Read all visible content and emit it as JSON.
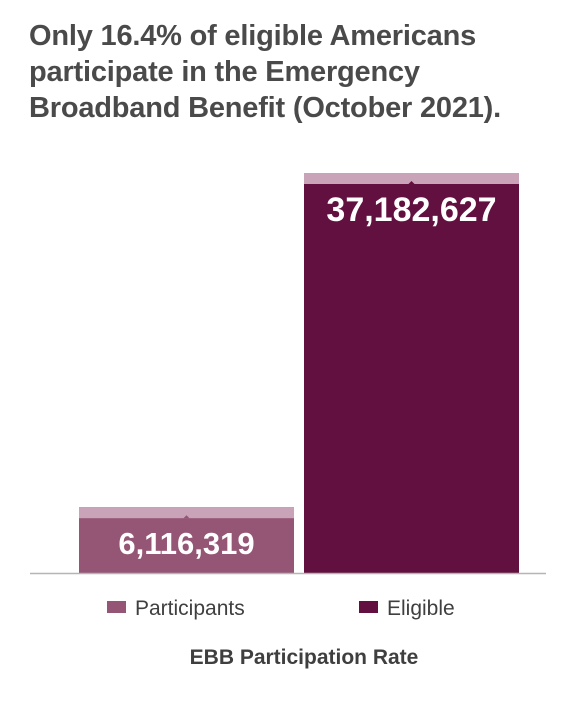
{
  "title_lines": [
    "Only 16.4% of eligible Americans",
    "participate in the Emergency",
    "Broadband Benefit (October 2021)."
  ],
  "colors": {
    "title": "#4a4a4a",
    "participants": "#955575",
    "eligible": "#62103f",
    "bar_cap": "#c9a3b7",
    "axis": "#b5b5b5",
    "label": "#ffffff",
    "legend_text": "#3f3f3f"
  },
  "chart_data": {
    "type": "bar",
    "categories": [
      "Participants",
      "Eligible"
    ],
    "values": [
      6116319,
      37182627
    ],
    "value_labels": [
      "6,116,319",
      "37,182,627"
    ],
    "xlabel": "EBB Participation Rate",
    "ylabel": "",
    "ylim": [
      0,
      37182627
    ],
    "grid": false,
    "legend": {
      "position": "bottom",
      "entries": [
        "Participants",
        "Eligible"
      ]
    }
  }
}
